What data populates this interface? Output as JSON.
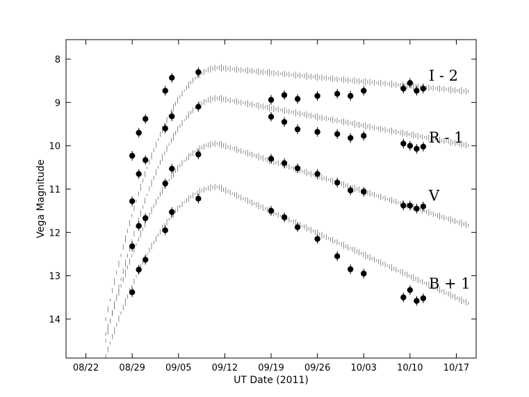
{
  "chart_data": {
    "type": "scatter",
    "title": "",
    "xlabel": "UT Date (2011)",
    "ylabel": "Vega Magnitude",
    "x_ticks": [
      "08/22",
      "08/29",
      "09/05",
      "09/12",
      "09/19",
      "09/26",
      "10/03",
      "10/10",
      "10/17"
    ],
    "y_ticks": [
      8,
      9,
      10,
      11,
      12,
      13,
      14
    ],
    "xlim": [
      "2011-08-19",
      "2011-10-20"
    ],
    "ylim": [
      14.9,
      7.55
    ],
    "y_inverted": true,
    "grid": false,
    "legend": "none",
    "series": [
      {
        "name": "I - 2",
        "points": [
          [
            "2011-09-03",
            8.73
          ],
          [
            "2011-09-04",
            8.43
          ],
          [
            "2011-09-08",
            8.3
          ],
          [
            "2011-09-19",
            8.94
          ],
          [
            "2011-09-21",
            8.83
          ],
          [
            "2011-09-23",
            8.92
          ],
          [
            "2011-09-26",
            8.85
          ],
          [
            "2011-09-29",
            8.8
          ],
          [
            "2011-10-01",
            8.85
          ],
          [
            "2011-10-03",
            8.73
          ],
          [
            "2011-10-09",
            8.68
          ],
          [
            "2011-10-10",
            8.55
          ],
          [
            "2011-10-11",
            8.73
          ],
          [
            "2011-10-12",
            8.68
          ]
        ]
      },
      {
        "name": "R - 1",
        "points": [
          [
            "2011-08-29",
            10.23
          ],
          [
            "2011-08-30",
            9.7
          ],
          [
            "2011-08-31",
            9.38
          ],
          [
            "2011-09-03",
            9.6
          ],
          [
            "2011-09-04",
            9.32
          ],
          [
            "2011-09-08",
            9.1
          ],
          [
            "2011-09-19",
            9.33
          ],
          [
            "2011-09-21",
            9.45
          ],
          [
            "2011-09-23",
            9.62
          ],
          [
            "2011-09-26",
            9.68
          ],
          [
            "2011-09-29",
            9.73
          ],
          [
            "2011-10-01",
            9.82
          ],
          [
            "2011-10-03",
            9.77
          ],
          [
            "2011-10-09",
            9.95
          ],
          [
            "2011-10-10",
            10.0
          ],
          [
            "2011-10-11",
            10.07
          ],
          [
            "2011-10-12",
            10.02
          ]
        ]
      },
      {
        "name": "V",
        "points": [
          [
            "2011-08-29",
            11.28
          ],
          [
            "2011-08-30",
            10.65
          ],
          [
            "2011-08-31",
            10.33
          ],
          [
            "2011-09-03",
            10.87
          ],
          [
            "2011-09-04",
            10.53
          ],
          [
            "2011-09-08",
            10.2
          ],
          [
            "2011-09-19",
            10.3
          ],
          [
            "2011-09-21",
            10.4
          ],
          [
            "2011-09-23",
            10.52
          ],
          [
            "2011-09-26",
            10.65
          ],
          [
            "2011-09-29",
            10.85
          ],
          [
            "2011-10-01",
            11.03
          ],
          [
            "2011-10-03",
            11.06
          ],
          [
            "2011-10-09",
            11.38
          ],
          [
            "2011-10-10",
            11.38
          ],
          [
            "2011-10-11",
            11.45
          ],
          [
            "2011-10-12",
            11.4
          ]
        ]
      },
      {
        "name": "B + 1",
        "points": [
          [
            "2011-08-29",
            12.32
          ],
          [
            "2011-08-30",
            11.85
          ],
          [
            "2011-08-31",
            11.67
          ],
          [
            "2011-08-29",
            13.38
          ],
          [
            "2011-08-30",
            12.86
          ],
          [
            "2011-08-31",
            12.63
          ],
          [
            "2011-09-03",
            11.95
          ],
          [
            "2011-09-04",
            11.53
          ],
          [
            "2011-09-08",
            11.22
          ],
          [
            "2011-09-19",
            11.5
          ],
          [
            "2011-09-21",
            11.65
          ],
          [
            "2011-09-23",
            11.88
          ],
          [
            "2011-09-26",
            12.15
          ],
          [
            "2011-09-29",
            12.55
          ],
          [
            "2011-10-01",
            12.85
          ],
          [
            "2011-10-03",
            12.95
          ],
          [
            "2011-10-09",
            13.5
          ],
          [
            "2011-10-10",
            13.33
          ],
          [
            "2011-10-11",
            13.58
          ],
          [
            "2011-10-12",
            13.52
          ]
        ]
      }
    ],
    "annotations": [
      {
        "text": "I - 2",
        "x": "2011-10-12",
        "y": 8.4
      },
      {
        "text": "R - 1",
        "x": "2011-10-12",
        "y": 9.83
      },
      {
        "text": "V",
        "x": "2011-10-12",
        "y": 11.17
      },
      {
        "text": "B + 1",
        "x": "2011-10-12",
        "y": 13.2
      }
    ]
  }
}
